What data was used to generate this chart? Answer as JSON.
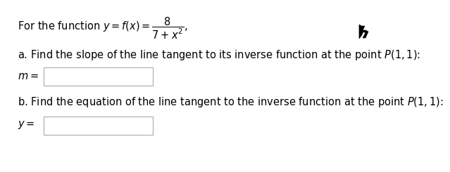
{
  "background_color": "#ffffff",
  "text_color": "#000000",
  "box_edge_color": "#aaaaaa",
  "box_face_color": "#ffffff",
  "font_size": 10.5,
  "line1": "For the function $y = f(x) = \\dfrac{8}{7 + x^2},$",
  "line_a": "a. Find the slope of the line tangent to its inverse function at the point $P(1, 1)$:",
  "line_b": "b. Find the equation of the line tangent to the inverse function at the point $P(1, 1)$:",
  "label_m": "$m = $",
  "label_y": "$y = $"
}
